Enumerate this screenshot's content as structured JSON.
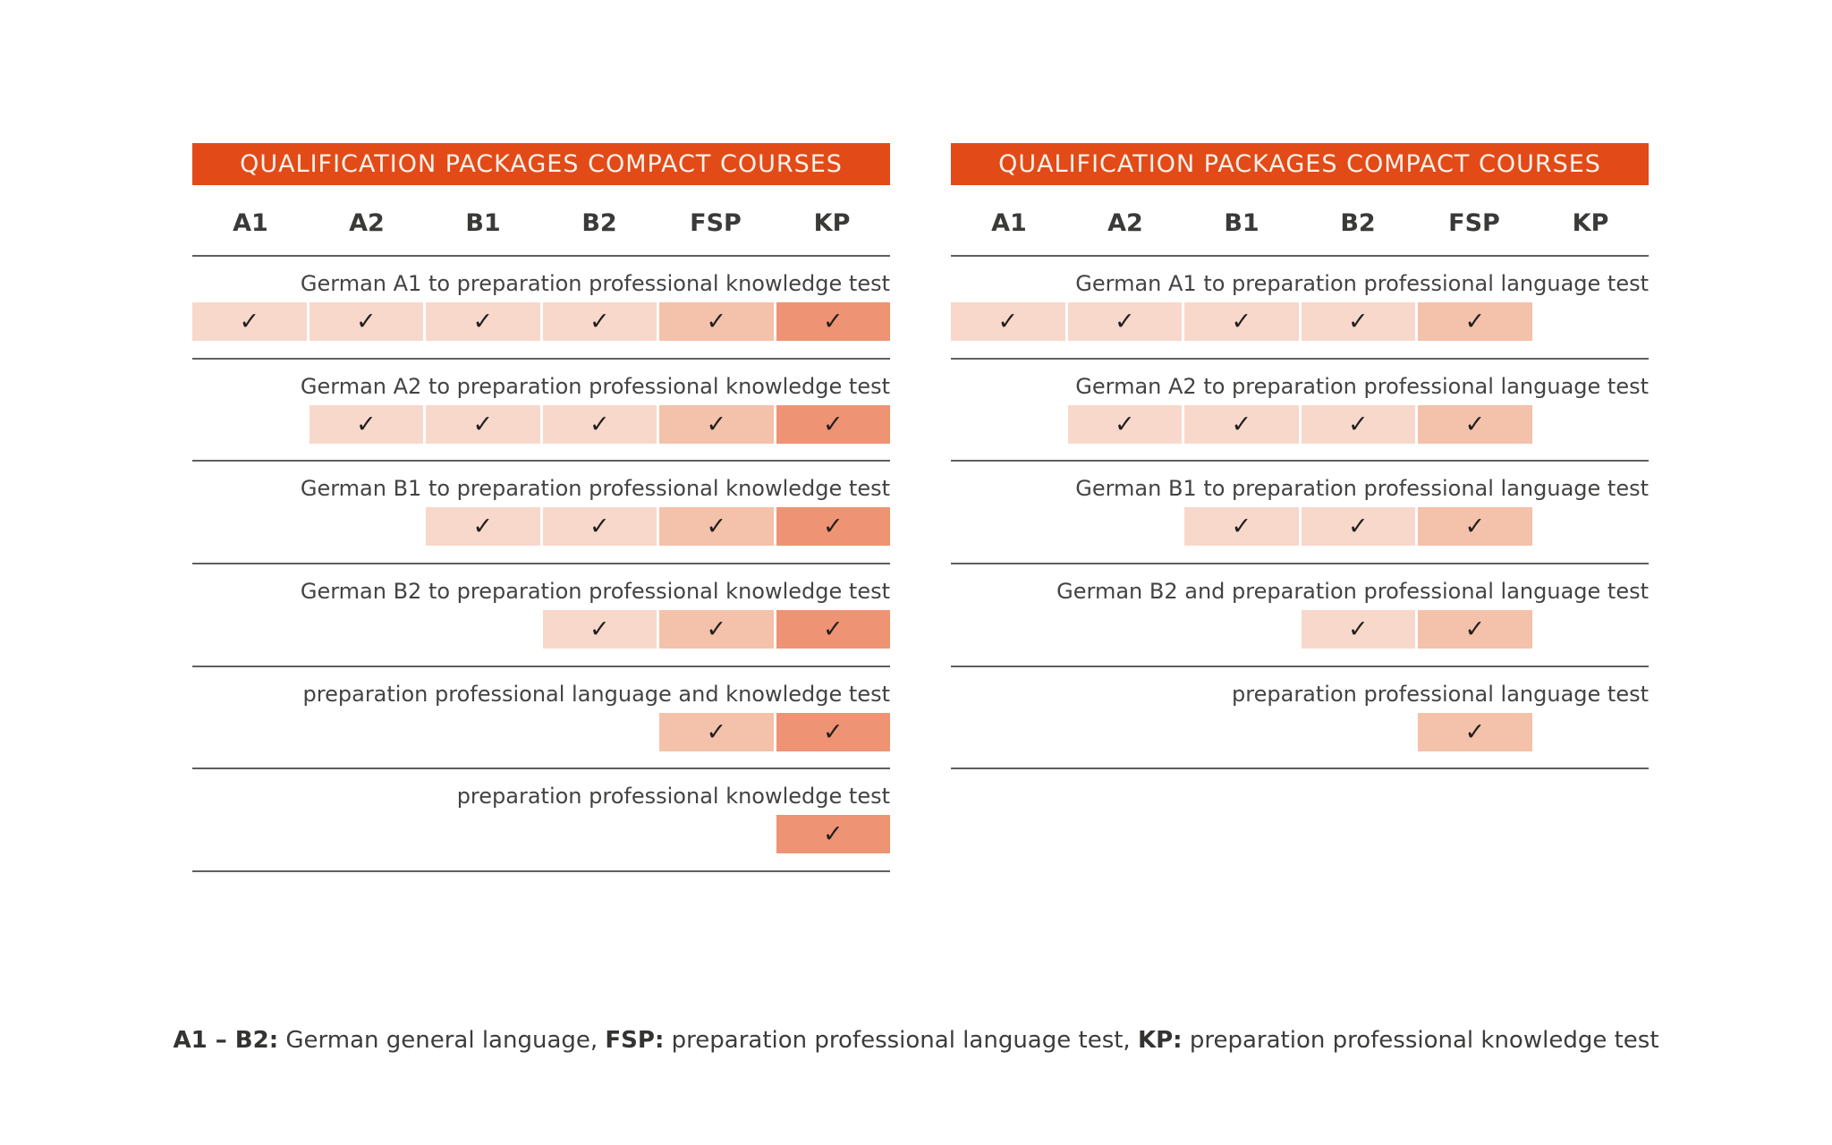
{
  "colors": {
    "header_bar": "#e24a18",
    "header_text": "#fbf2ea",
    "cell_light": "#f8d8cb",
    "cell_medium": "#f4c1aa",
    "cell_dark": "#ee9373",
    "separator_line": "#5f5f5f",
    "body_text": "#3c3c3b"
  },
  "check_icon": "✓",
  "tables": [
    {
      "title": "QUALIFICATION PACKAGES COMPACT COURSES",
      "columns": [
        "A1",
        "A2",
        "B1",
        "B2",
        "FSP",
        "KP"
      ],
      "rows": [
        {
          "label": "German A1 to preparation professional knowledge test",
          "checks": [
            "light",
            "light",
            "light",
            "light",
            "medium",
            "dark"
          ]
        },
        {
          "label": "German A2 to preparation professional knowledge test",
          "checks": [
            null,
            "light",
            "light",
            "light",
            "medium",
            "dark"
          ]
        },
        {
          "label": "German B1 to preparation professional knowledge test",
          "checks": [
            null,
            null,
            "light",
            "light",
            "medium",
            "dark"
          ]
        },
        {
          "label": "German B2 to preparation professional knowledge test",
          "checks": [
            null,
            null,
            null,
            "light",
            "medium",
            "dark"
          ]
        },
        {
          "label": "preparation professional language and knowledge test",
          "checks": [
            null,
            null,
            null,
            null,
            "medium",
            "dark"
          ]
        },
        {
          "label": "preparation professional knowledge test",
          "checks": [
            null,
            null,
            null,
            null,
            null,
            "dark"
          ]
        }
      ]
    },
    {
      "title": "QUALIFICATION PACKAGES COMPACT COURSES",
      "columns": [
        "A1",
        "A2",
        "B1",
        "B2",
        "FSP",
        "KP"
      ],
      "rows": [
        {
          "label": "German A1 to preparation professional language test",
          "checks": [
            "light",
            "light",
            "light",
            "light",
            "medium",
            null
          ]
        },
        {
          "label": "German A2 to preparation professional language test",
          "checks": [
            null,
            "light",
            "light",
            "light",
            "medium",
            null
          ]
        },
        {
          "label": "German B1 to preparation professional language test",
          "checks": [
            null,
            null,
            "light",
            "light",
            "medium",
            null
          ]
        },
        {
          "label": "German B2 and preparation professional language test",
          "checks": [
            null,
            null,
            null,
            "light",
            "medium",
            null
          ]
        },
        {
          "label": "preparation professional language test",
          "checks": [
            null,
            null,
            null,
            null,
            "medium",
            null
          ]
        }
      ]
    }
  ],
  "legend": {
    "parts": [
      {
        "text": "A1 – B2:",
        "bold": true
      },
      {
        "text": " German general language, ",
        "bold": false
      },
      {
        "text": "FSP:",
        "bold": true
      },
      {
        "text": " preparation professional language test, ",
        "bold": false
      },
      {
        "text": "KP:",
        "bold": true
      },
      {
        "text": " preparation professional knowledge test",
        "bold": false
      }
    ]
  }
}
